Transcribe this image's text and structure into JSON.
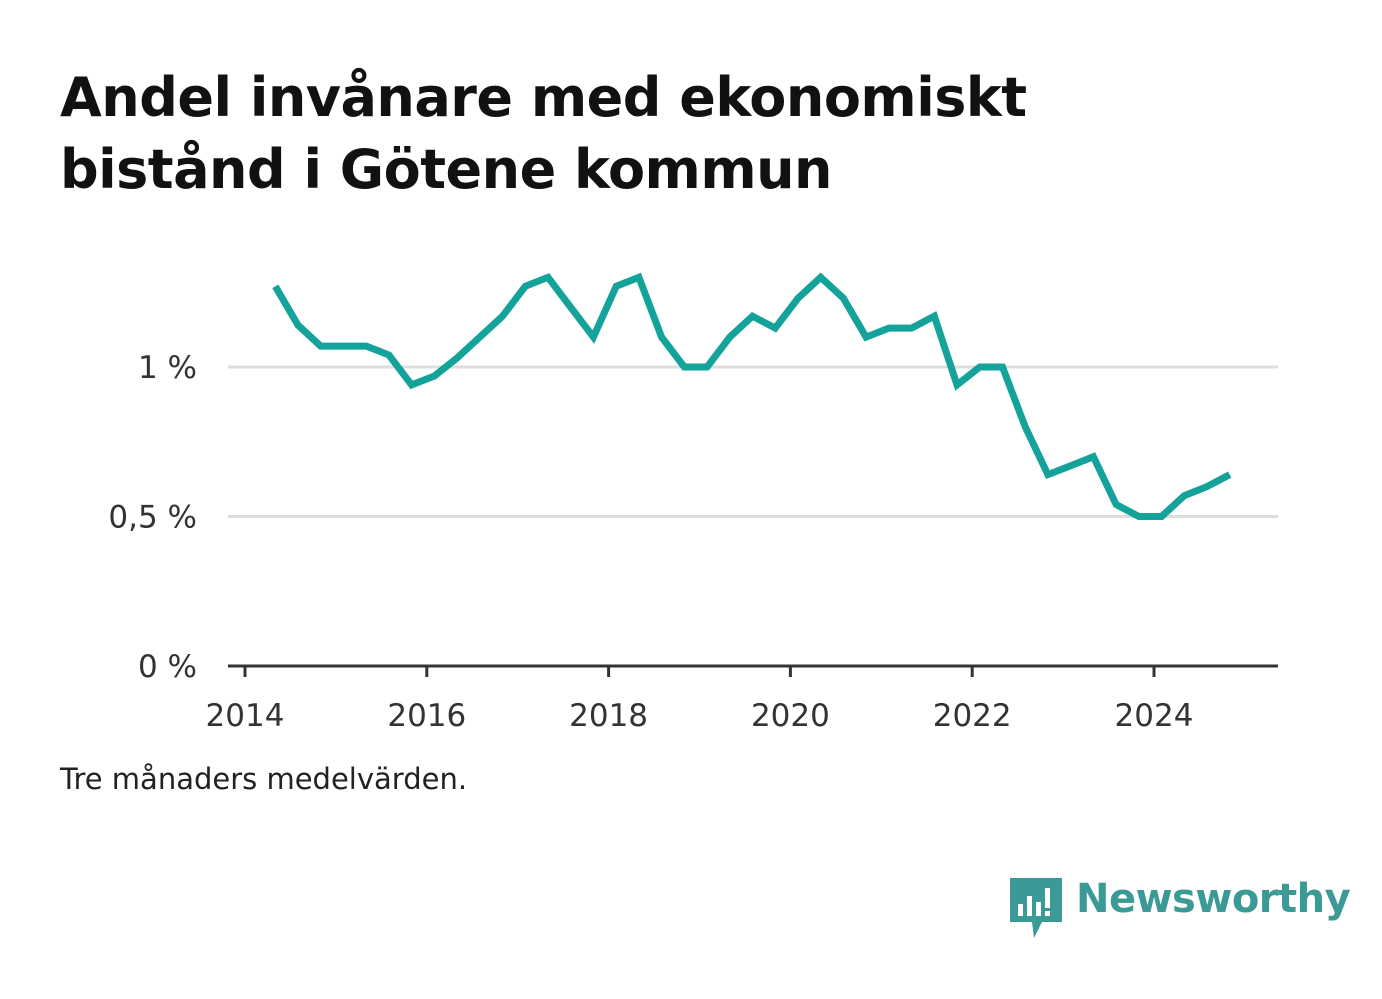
{
  "title": "Andel invånare med ekonomiskt bistånd i Götene kommun",
  "footnote": "Tre månaders medelvärden.",
  "brand": "Newsworthy",
  "colors": {
    "line": "#13a39a",
    "grid": "#dddddd",
    "axis": "#333333",
    "brand": "#3c9a96"
  },
  "chart_data": {
    "type": "line",
    "title": "Andel invånare med ekonomiskt bistånd i Götene kommun",
    "xlabel": "",
    "ylabel": "",
    "xlim": [
      "2013-11",
      "2025-05"
    ],
    "ylim": [
      0,
      1.3
    ],
    "grid": true,
    "legend": "none",
    "x_ticks": [
      "2014",
      "2016",
      "2018",
      "2020",
      "2022",
      "2024"
    ],
    "y_ticks": [
      {
        "value": 0,
        "label": "0 %"
      },
      {
        "value": 0.5,
        "label": "0,5 %"
      },
      {
        "value": 1,
        "label": "1 %"
      }
    ],
    "series": [
      {
        "x": [
          "2014-05",
          "2014-08",
          "2014-11",
          "2015-02",
          "2015-05",
          "2015-08",
          "2015-11",
          "2016-02",
          "2016-05",
          "2016-08",
          "2016-11",
          "2017-02",
          "2017-05",
          "2017-08",
          "2017-11",
          "2018-02",
          "2018-05",
          "2018-08",
          "2018-11",
          "2019-02",
          "2019-05",
          "2019-08",
          "2019-11",
          "2020-02",
          "2020-05",
          "2020-08",
          "2020-11",
          "2021-02",
          "2021-05",
          "2021-08",
          "2021-11",
          "2022-02",
          "2022-05",
          "2022-08",
          "2022-11",
          "2023-02",
          "2023-05",
          "2023-08",
          "2023-11",
          "2024-02",
          "2024-05",
          "2024-08",
          "2024-11"
        ],
        "values": [
          1.27,
          1.14,
          1.07,
          1.07,
          1.07,
          1.04,
          0.94,
          0.97,
          1.03,
          1.1,
          1.17,
          1.27,
          1.3,
          1.2,
          1.1,
          1.27,
          1.3,
          1.1,
          1.0,
          1.0,
          1.1,
          1.17,
          1.13,
          1.23,
          1.3,
          1.23,
          1.1,
          1.13,
          1.13,
          1.17,
          0.94,
          1.0,
          1.0,
          0.8,
          0.64,
          0.67,
          0.7,
          0.54,
          0.5,
          0.5,
          0.57,
          0.6,
          0.64
        ]
      }
    ]
  }
}
